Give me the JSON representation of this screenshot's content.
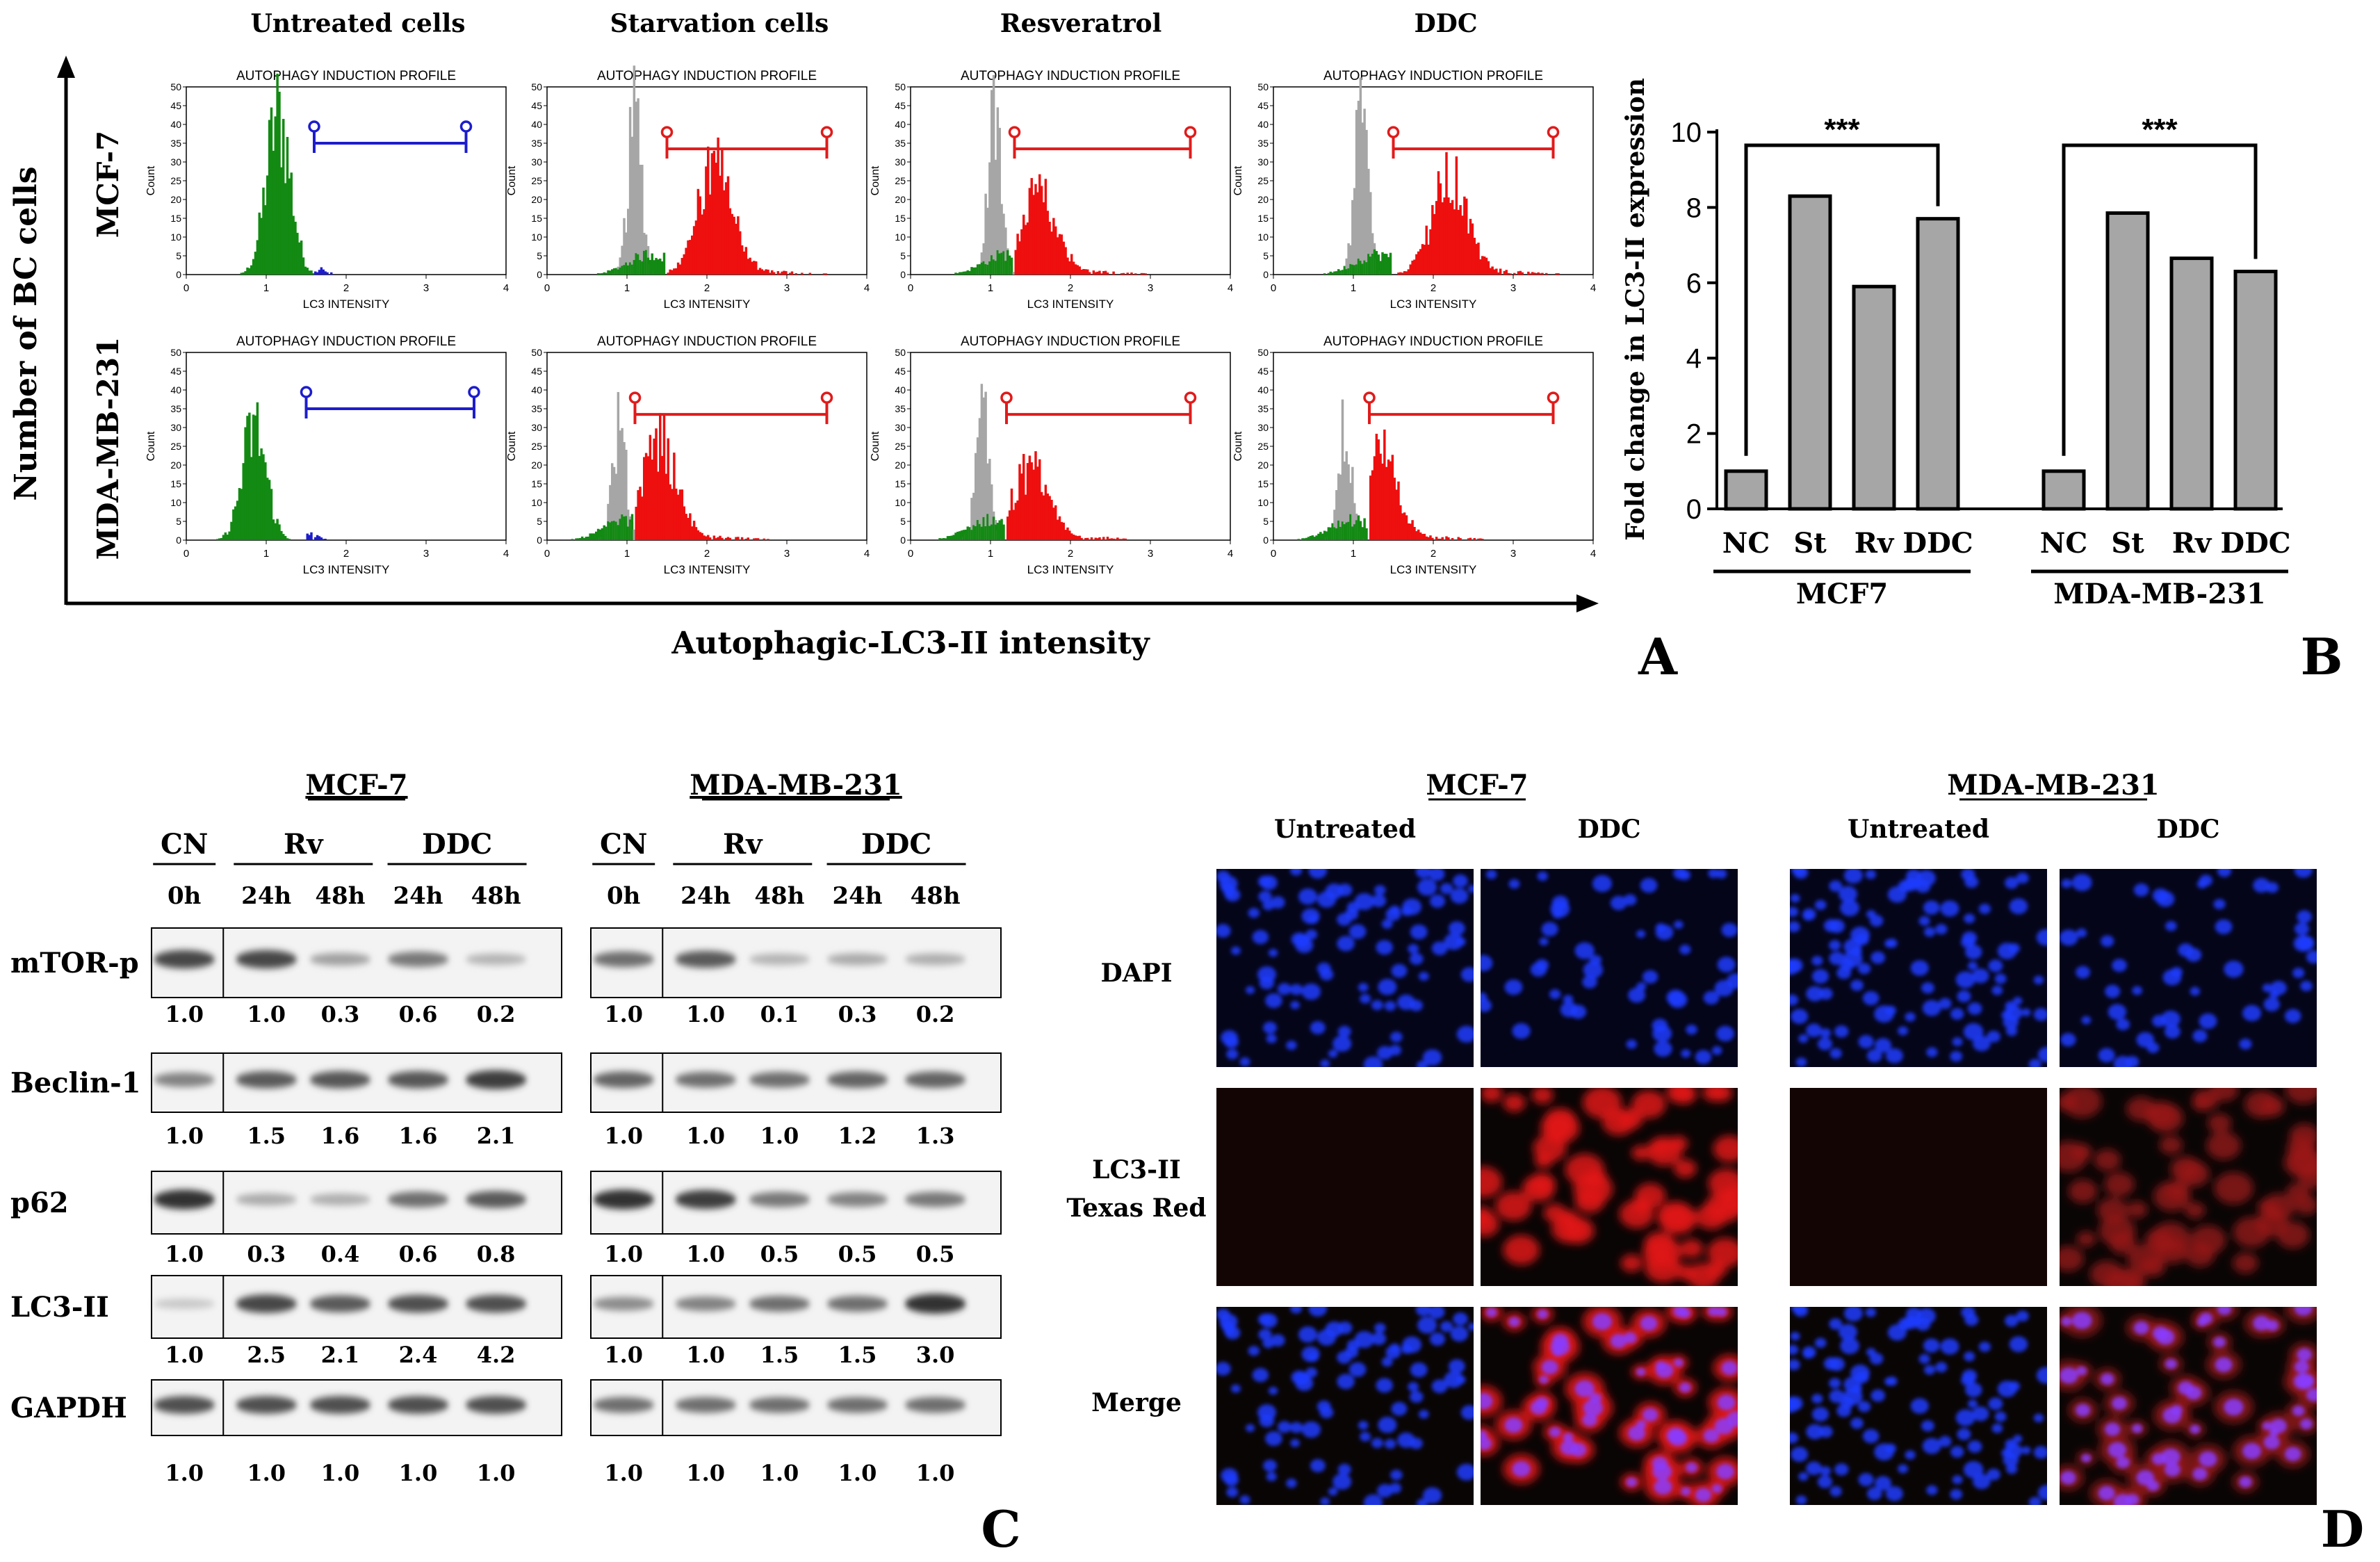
{
  "panel_letters": [
    "A",
    "B",
    "C",
    "D"
  ],
  "colors": {
    "green": "#138a13",
    "red": "#ee0f0f",
    "gray": "#a6a6a6",
    "blue_gate": "#1d1dcc",
    "red_gate": "#e01b1b",
    "dapi": "#1f3cff",
    "texas_red": "#d01818",
    "bar_fill": "#a6a6a6"
  },
  "panel_a": {
    "y_axis_title": "Number of BC cells",
    "x_axis_title": "Autophagic-LC3-II intensity",
    "columns": [
      "Untreated cells",
      "Starvation cells",
      "Resveratrol",
      "DDC"
    ],
    "rows": [
      "MCF-7",
      "MDA-MB-231"
    ],
    "plot_title": "AUTOPHAGY INDUCTION PROFILE",
    "x_label": "LC3 INTENSITY",
    "y_label": "Count",
    "x_ticks": [
      "0",
      "1",
      "2",
      "3",
      "4"
    ],
    "y_ticks": [
      "0",
      "5",
      "10",
      "15",
      "20",
      "25",
      "30",
      "35",
      "40",
      "45",
      "50"
    ],
    "histograms": [
      {
        "row": "MCF-7",
        "column": "Untreated cells",
        "gate_start": 1.6,
        "gate_end": 3.5,
        "gate_color": "blue",
        "gray_peak": null,
        "green_peak": 1.15,
        "green_height": 47,
        "positive_peak": null
      },
      {
        "row": "MCF-7",
        "column": "Starvation cells",
        "gate_start": 1.5,
        "gate_end": 3.5,
        "gate_color": "red",
        "gray_peak": 1.1,
        "gray_height": 47,
        "green_peak": 1.3,
        "positive_peak": 2.1,
        "positive_height": 30
      },
      {
        "row": "MCF-7",
        "column": "Resveratrol",
        "gate_start": 1.3,
        "gate_end": 3.5,
        "gate_color": "red",
        "gray_peak": 1.05,
        "gray_height": 45,
        "green_peak": 1.2,
        "positive_peak": 1.6,
        "positive_height": 22
      },
      {
        "row": "MCF-7",
        "column": "DDC",
        "gate_start": 1.5,
        "gate_end": 3.5,
        "gate_color": "red",
        "gray_peak": 1.1,
        "gray_height": 46,
        "green_peak": 1.3,
        "positive_peak": 2.2,
        "positive_height": 27
      },
      {
        "row": "MDA-MB-231",
        "column": "Untreated cells",
        "gate_start": 1.5,
        "gate_end": 3.6,
        "gate_color": "blue",
        "gray_peak": null,
        "green_peak": 0.85,
        "green_height": 33,
        "positive_peak": null
      },
      {
        "row": "MDA-MB-231",
        "column": "Starvation cells",
        "gate_start": 1.1,
        "gate_end": 3.5,
        "gate_color": "red",
        "gray_peak": 0.9,
        "gray_height": 33,
        "green_peak": 1.0,
        "positive_peak": 1.4,
        "positive_height": 28
      },
      {
        "row": "MDA-MB-231",
        "column": "Resveratrol",
        "gate_start": 1.2,
        "gate_end": 3.5,
        "gate_color": "red",
        "gray_peak": 0.9,
        "gray_height": 35,
        "green_peak": 1.0,
        "positive_peak": 1.5,
        "positive_height": 20
      },
      {
        "row": "MDA-MB-231",
        "column": "DDC",
        "gate_start": 1.2,
        "gate_end": 3.5,
        "gate_color": "red",
        "gray_peak": 0.9,
        "gray_height": 34,
        "green_peak": 1.0,
        "positive_peak": 1.3,
        "positive_height": 26
      }
    ]
  },
  "chart_data": {
    "type": "bar",
    "ylabel": "Fold change in LC3-II expression",
    "ylim": [
      0,
      10
    ],
    "yticks": [
      "0",
      "2",
      "4",
      "6",
      "8",
      "10"
    ],
    "groups": [
      {
        "name": "MCF7",
        "categories": [
          "NC",
          "St",
          "Rv",
          "DDC"
        ],
        "values": [
          1.0,
          8.3,
          5.9,
          7.7
        ],
        "significance": "***"
      },
      {
        "name": "MDA-MB-231",
        "categories": [
          "NC",
          "St",
          "Rv",
          "DDC"
        ],
        "values": [
          1.0,
          7.85,
          6.65,
          6.3
        ],
        "significance": "***"
      }
    ]
  },
  "panel_c": {
    "blots": [
      {
        "title": "MCF-7",
        "group_labels": [
          "CN",
          "Rv",
          "DDC"
        ],
        "time_labels": [
          "0h",
          "24h",
          "48h",
          "24h",
          "48h"
        ],
        "rows": [
          {
            "protein": "mTOR-p",
            "values": [
              "1.0",
              "1.0",
              "0.3",
              "0.6",
              "0.2"
            ],
            "band_strength": [
              0.8,
              0.8,
              0.35,
              0.55,
              0.25
            ]
          },
          {
            "protein": "Beclin-1",
            "values": [
              "1.0",
              "1.5",
              "1.6",
              "1.6",
              "2.1"
            ],
            "band_strength": [
              0.5,
              0.7,
              0.72,
              0.72,
              0.85
            ]
          },
          {
            "protein": "p62",
            "values": [
              "1.0",
              "0.3",
              "0.4",
              "0.6",
              "0.8"
            ],
            "band_strength": [
              0.9,
              0.3,
              0.28,
              0.6,
              0.7
            ]
          },
          {
            "protein": "LC3-II",
            "values": [
              "1.0",
              "2.5",
              "2.1",
              "2.4",
              "4.2"
            ],
            "band_strength": [
              0.15,
              0.8,
              0.7,
              0.75,
              0.75
            ]
          },
          {
            "protein": "GAPDH",
            "values": [
              "1.0",
              "1.0",
              "1.0",
              "1.0",
              "1.0"
            ],
            "band_strength": [
              0.75,
              0.75,
              0.75,
              0.75,
              0.75
            ]
          }
        ]
      },
      {
        "title": "MDA-MB-231",
        "group_labels": [
          "CN",
          "Rv",
          "DDC"
        ],
        "time_labels": [
          "0h",
          "24h",
          "48h",
          "24h",
          "48h"
        ],
        "rows": [
          {
            "protein": "mTOR-p",
            "values": [
              "1.0",
              "1.0",
              "0.1",
              "0.3",
              "0.2"
            ],
            "band_strength": [
              0.6,
              0.7,
              0.25,
              0.3,
              0.28
            ]
          },
          {
            "protein": "Beclin-1",
            "values": [
              "1.0",
              "1.0",
              "1.0",
              "1.2",
              "1.3"
            ],
            "band_strength": [
              0.65,
              0.6,
              0.6,
              0.65,
              0.65
            ]
          },
          {
            "protein": "p62",
            "values": [
              "1.0",
              "1.0",
              "0.5",
              "0.5",
              "0.5"
            ],
            "band_strength": [
              0.9,
              0.85,
              0.55,
              0.5,
              0.55
            ]
          },
          {
            "protein": "LC3-II",
            "values": [
              "1.0",
              "1.0",
              "1.5",
              "1.5",
              "3.0"
            ],
            "band_strength": [
              0.45,
              0.5,
              0.6,
              0.6,
              0.9
            ]
          },
          {
            "protein": "GAPDH",
            "values": [
              "1.0",
              "1.0",
              "1.0",
              "1.0",
              "1.0"
            ],
            "band_strength": [
              0.6,
              0.6,
              0.6,
              0.6,
              0.6
            ]
          }
        ]
      }
    ]
  },
  "panel_d": {
    "cell_lines": [
      "MCF-7",
      "MDA-MB-231"
    ],
    "conditions": [
      "Untreated",
      "DDC"
    ],
    "row_labels": [
      "DAPI",
      "LC3-II",
      "Texas Red",
      "Merge"
    ]
  }
}
